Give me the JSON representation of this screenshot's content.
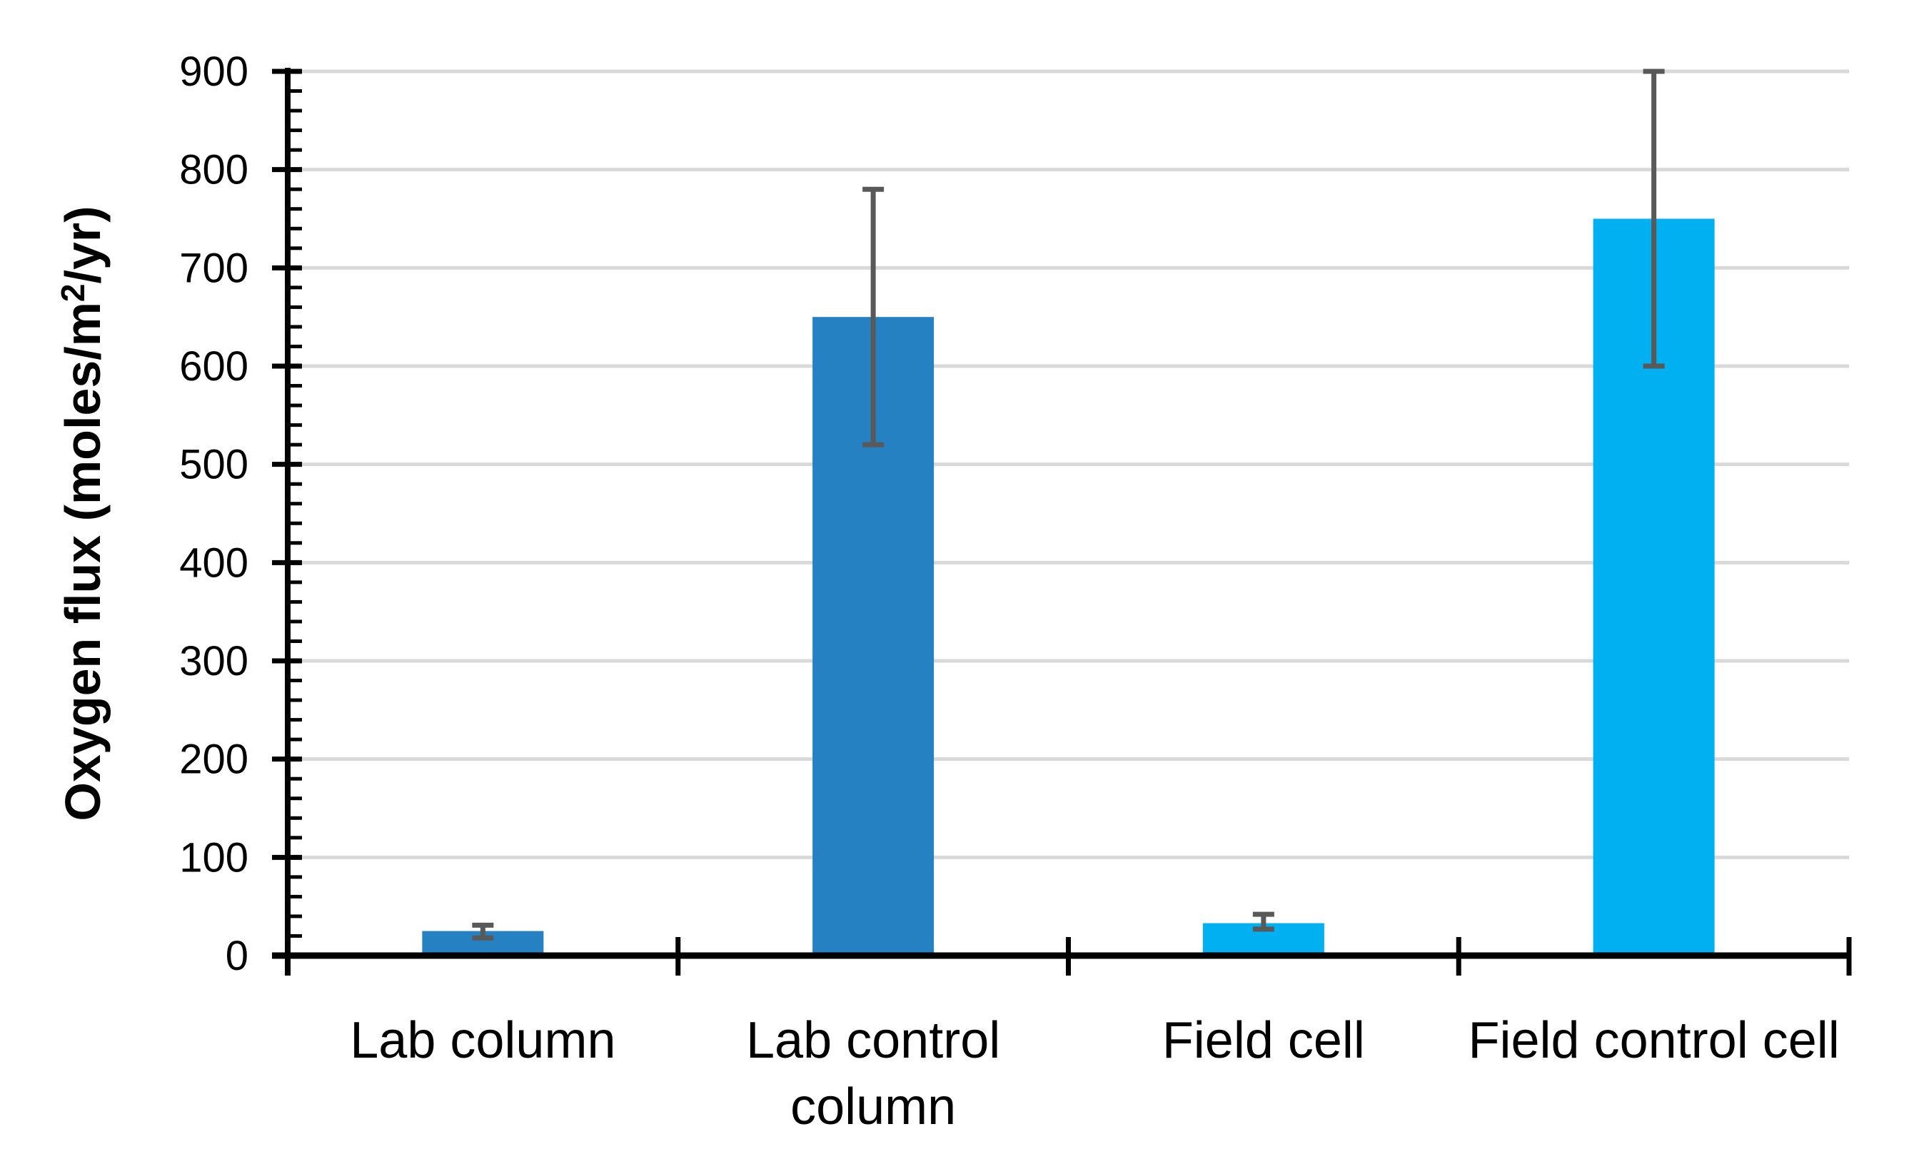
{
  "chart_data": {
    "type": "bar",
    "title": "",
    "categories": [
      "Lab column",
      "Lab control\ncolumn",
      "Field cell",
      "Field control cell"
    ],
    "values": [
      25,
      650,
      33,
      750
    ],
    "error_low": [
      18,
      520,
      27,
      600
    ],
    "error_high": [
      31,
      780,
      42,
      900
    ],
    "bar_colors": [
      "#2681C3",
      "#2681C3",
      "#00B0F0",
      "#00B0F0"
    ],
    "ylabel": "Oxygen flux  (moles/m²/yr)",
    "xlabel": "",
    "ylim": [
      0,
      900
    ],
    "yticks": [
      0,
      100,
      200,
      300,
      400,
      500,
      600,
      700,
      800,
      900
    ],
    "ytick_step": 100,
    "yminor_step": 20,
    "grid": true,
    "legend": false
  },
  "colors": {
    "background": "#FFFFFF",
    "gridline": "#D9D9D9",
    "axis": "#000000",
    "tick": "#000000",
    "error_bar": "#595959",
    "text": "#000000"
  }
}
